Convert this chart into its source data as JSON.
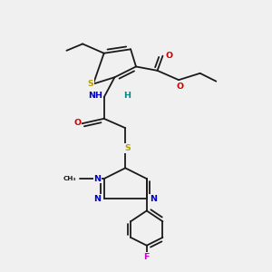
{
  "background_color": "#f0f0f0",
  "colors": {
    "C": "#1a1a1a",
    "S": "#b8a000",
    "N": "#0000cc",
    "O": "#cc0000",
    "F": "#cc00cc",
    "H": "#008888",
    "bond": "#1a1a1a"
  }
}
